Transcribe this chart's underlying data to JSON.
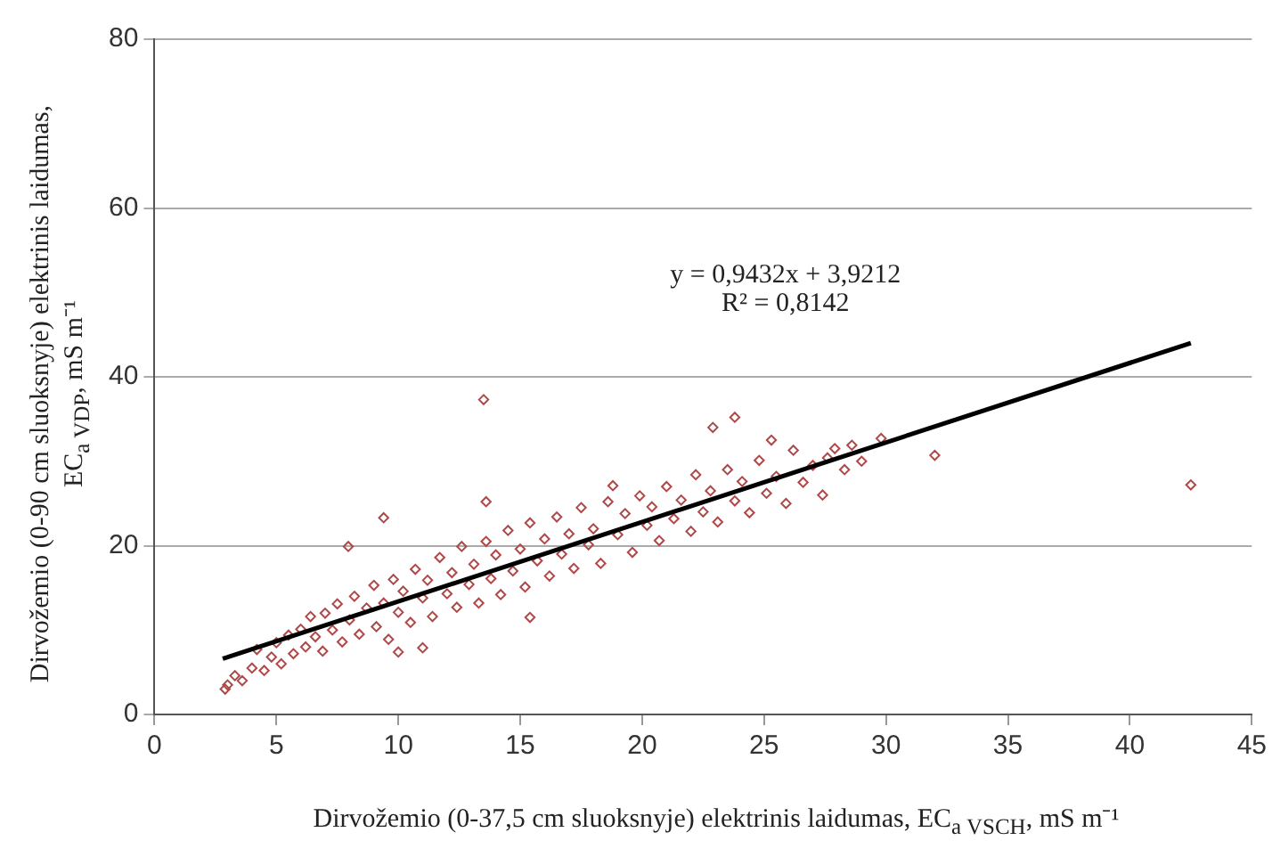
{
  "chart_data": {
    "type": "scatter",
    "xlabel": "Dirvožemio (0-37,5 cm sluoksnyje) elektrinis laidumas, EC$_{a VSCH}$,  mS m⁻¹",
    "ylabel": "Dirvožemio (0-90 cm sluoksnyje) elektrinis laidumas, EC$_{a VDP}$,  mS m⁻¹",
    "annotations": [
      "y = 0,9432x + 3,9212",
      "R² = 0,8142"
    ],
    "xlim": [
      0,
      45
    ],
    "xticks": [
      0,
      5,
      10,
      15,
      20,
      25,
      30,
      35,
      40,
      45
    ],
    "ylim": [
      0,
      80
    ],
    "yticks": [
      0,
      20,
      40,
      60,
      80
    ],
    "grid": "y",
    "legend": false,
    "series": [
      {
        "marker": "diamond",
        "color": "#b04848",
        "x": [
          3.0,
          3.3,
          3.6,
          4.0,
          4.2,
          4.5,
          4.8,
          5.0,
          5.2,
          5.5,
          5.7,
          6.0,
          6.2,
          6.4,
          6.6,
          6.9,
          7.0,
          7.3,
          7.5,
          7.7,
          8.0,
          8.2,
          8.4,
          8.7,
          9.0,
          9.1,
          9.4,
          9.6,
          9.8,
          10.0,
          10.2,
          10.5,
          10.7,
          11.0,
          11.2,
          11.4,
          11.7,
          12.0,
          12.2,
          12.4,
          12.6,
          12.9,
          13.1,
          13.3,
          13.6,
          13.8,
          14.0,
          14.2,
          14.5,
          14.7,
          15.0,
          15.2,
          15.4,
          15.7,
          16.0,
          16.2,
          16.5,
          16.7,
          17.0,
          17.2,
          17.5,
          17.8,
          18.0,
          18.3,
          18.6,
          18.8,
          19.0,
          19.3,
          19.6,
          19.9,
          20.2,
          20.4,
          20.7,
          21.0,
          21.3,
          21.6,
          22.0,
          22.2,
          22.5,
          22.8,
          23.1,
          23.5,
          23.8,
          24.1,
          24.4,
          24.8,
          25.1,
          25.5,
          25.9,
          26.2,
          26.6,
          27.0,
          27.4,
          27.6,
          27.9,
          28.3,
          28.6,
          29.0,
          2.9,
          13.5,
          23.8,
          22.9,
          25.3,
          29.8,
          9.4,
          7.95,
          13.6,
          10.0,
          11.0,
          15.4,
          32.0,
          42.5
        ],
        "values": [
          3.5,
          4.6,
          4.0,
          5.5,
          7.7,
          5.2,
          6.8,
          8.5,
          6.0,
          9.4,
          7.2,
          10.1,
          8.0,
          11.6,
          9.2,
          7.5,
          12.0,
          10.0,
          13.1,
          8.6,
          11.2,
          14.0,
          9.5,
          12.6,
          15.3,
          10.4,
          13.2,
          8.9,
          16.0,
          12.1,
          14.6,
          10.9,
          17.2,
          13.8,
          15.9,
          11.6,
          18.6,
          14.3,
          16.8,
          12.7,
          19.9,
          15.4,
          17.8,
          13.2,
          20.5,
          16.1,
          18.9,
          14.2,
          21.8,
          17.0,
          19.6,
          15.1,
          22.7,
          18.2,
          20.8,
          16.4,
          23.4,
          19.0,
          21.4,
          17.3,
          24.5,
          20.1,
          22.0,
          17.9,
          25.2,
          27.1,
          21.3,
          23.8,
          19.2,
          25.9,
          22.4,
          24.6,
          20.6,
          27.0,
          23.2,
          25.4,
          21.7,
          28.4,
          24.0,
          26.5,
          22.8,
          29.0,
          25.3,
          27.6,
          23.9,
          30.1,
          26.2,
          28.2,
          25.0,
          31.3,
          27.5,
          29.5,
          26.0,
          30.4,
          31.5,
          29.0,
          31.9,
          30.0,
          3.0,
          37.3,
          35.2,
          34.0,
          32.5,
          32.7,
          23.3,
          19.9,
          25.2,
          7.4,
          7.9,
          11.5,
          30.7,
          27.2
        ]
      },
      {
        "type": "line",
        "color": "#000000",
        "x": [
          2.8,
          42.5
        ],
        "values": [
          6.6,
          44.0
        ]
      }
    ]
  }
}
